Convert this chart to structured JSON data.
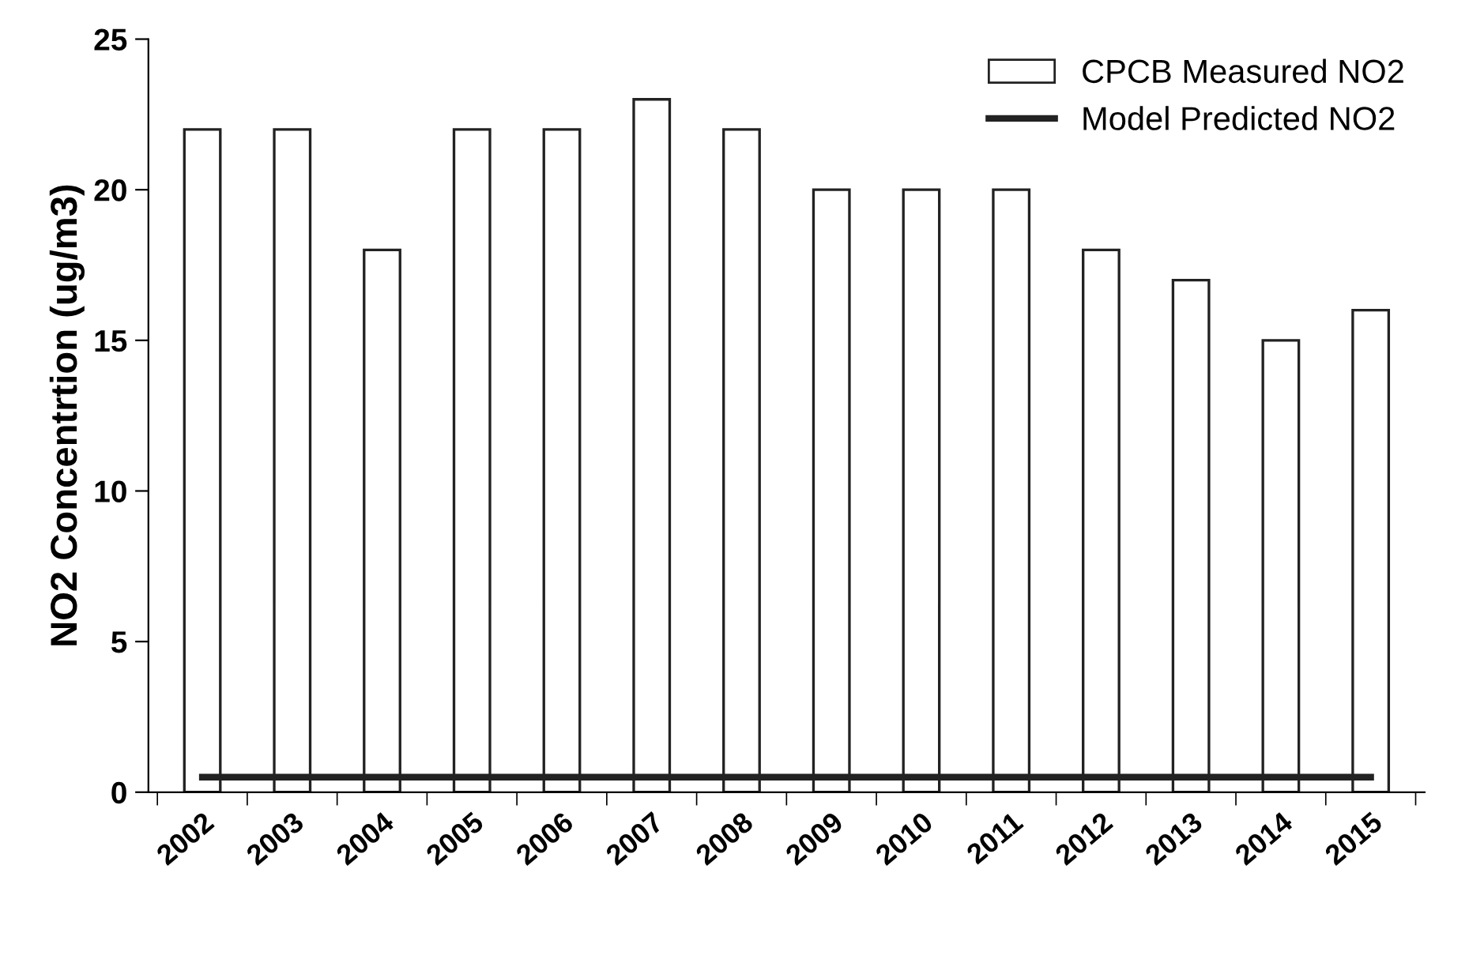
{
  "chart_data": {
    "type": "bar",
    "ylabel": "NO2 Concentrtion (ug/m3)",
    "categories": [
      "2002",
      "2003",
      "2004",
      "2005",
      "2006",
      "2007",
      "2008",
      "2009",
      "2010",
      "2011",
      "2012",
      "2013",
      "2014",
      "2015"
    ],
    "series": [
      {
        "name": "CPCB Measured NO2",
        "color": "#ffffff",
        "values": [
          22,
          22,
          18,
          22,
          22,
          23,
          22,
          20,
          20,
          20,
          18,
          17,
          15,
          16
        ]
      },
      {
        "name": "Model Predicted NO2",
        "type": "line",
        "color": "#222222",
        "values": [
          0.5,
          0.5,
          0.5,
          0.5,
          0.5,
          0.5,
          0.5,
          0.5,
          0.5,
          0.5,
          0.5,
          0.5,
          0.5,
          0.5
        ]
      }
    ],
    "ylim": [
      0,
      25
    ],
    "yticks": [
      0,
      5,
      10,
      15,
      20,
      25
    ],
    "grid": false,
    "legend": "top right",
    "marker": "none",
    "line_style": "solid"
  }
}
